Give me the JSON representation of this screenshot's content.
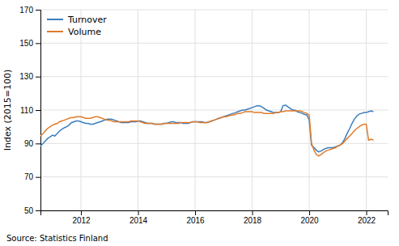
{
  "chart_data": {
    "type": "line",
    "ylabel": "Index (2015=100)",
    "annotations": [
      "Source: Statistics Finland"
    ],
    "xlim": [
      2010.58,
      2022.75
    ],
    "xticks": [
      2012,
      2014,
      2016,
      2018,
      2020,
      2022
    ],
    "ylim": [
      50,
      170
    ],
    "yticks": [
      50,
      70,
      90,
      110,
      130,
      150,
      170
    ],
    "grid": true,
    "legend": "upper left",
    "x": [
      2010.58,
      2010.67,
      2010.75,
      2010.83,
      2010.92,
      2011.0,
      2011.08,
      2011.17,
      2011.25,
      2011.33,
      2011.42,
      2011.5,
      2011.58,
      2011.67,
      2011.75,
      2011.83,
      2011.92,
      2012.0,
      2012.08,
      2012.17,
      2012.25,
      2012.33,
      2012.42,
      2012.5,
      2012.58,
      2012.67,
      2012.75,
      2012.83,
      2012.92,
      2013.0,
      2013.08,
      2013.17,
      2013.25,
      2013.33,
      2013.42,
      2013.5,
      2013.58,
      2013.67,
      2013.75,
      2013.83,
      2013.92,
      2014.0,
      2014.08,
      2014.17,
      2014.25,
      2014.33,
      2014.42,
      2014.5,
      2014.58,
      2014.67,
      2014.75,
      2014.83,
      2014.92,
      2015.0,
      2015.08,
      2015.17,
      2015.25,
      2015.33,
      2015.42,
      2015.5,
      2015.58,
      2015.67,
      2015.75,
      2015.83,
      2015.92,
      2016.0,
      2016.08,
      2016.17,
      2016.25,
      2016.33,
      2016.42,
      2016.5,
      2016.58,
      2016.67,
      2016.75,
      2016.83,
      2016.92,
      2017.0,
      2017.08,
      2017.17,
      2017.25,
      2017.33,
      2017.42,
      2017.5,
      2017.58,
      2017.67,
      2017.75,
      2017.83,
      2017.92,
      2018.0,
      2018.08,
      2018.17,
      2018.25,
      2018.33,
      2018.42,
      2018.5,
      2018.58,
      2018.67,
      2018.75,
      2018.83,
      2018.92,
      2019.0,
      2019.08,
      2019.17,
      2019.25,
      2019.33,
      2019.42,
      2019.5,
      2019.58,
      2019.67,
      2019.75,
      2019.83,
      2019.92,
      2020.0,
      2020.08,
      2020.17,
      2020.25,
      2020.33,
      2020.42,
      2020.5,
      2020.58,
      2020.67,
      2020.75,
      2020.83,
      2020.92,
      2021.0,
      2021.08,
      2021.17,
      2021.25,
      2021.33,
      2021.42,
      2021.5,
      2021.58,
      2021.67,
      2021.75,
      2021.83,
      2021.92,
      2022.0,
      2022.08,
      2022.17,
      2022.25
    ],
    "series": [
      {
        "name": "Turnover",
        "color": "#3a7ebf",
        "values": [
          88.5,
          90.0,
          91.5,
          93.0,
          94.0,
          95.0,
          94.5,
          96.0,
          97.5,
          98.5,
          99.5,
          100.0,
          101.0,
          102.5,
          103.0,
          103.5,
          103.5,
          103.0,
          102.5,
          102.0,
          102.0,
          101.5,
          101.5,
          102.0,
          102.5,
          103.0,
          103.5,
          104.0,
          104.5,
          104.5,
          104.5,
          104.0,
          103.5,
          103.0,
          102.5,
          102.5,
          102.5,
          102.5,
          103.0,
          103.0,
          103.0,
          103.5,
          103.5,
          103.0,
          102.5,
          102.0,
          102.0,
          102.0,
          101.5,
          101.5,
          101.5,
          101.5,
          102.0,
          102.0,
          102.5,
          103.0,
          103.0,
          102.5,
          102.5,
          102.5,
          102.0,
          102.0,
          102.0,
          102.5,
          103.0,
          103.0,
          103.0,
          103.0,
          103.0,
          102.5,
          102.5,
          103.0,
          103.5,
          104.0,
          104.5,
          105.0,
          105.5,
          106.0,
          106.5,
          107.0,
          107.5,
          108.0,
          108.5,
          109.0,
          109.5,
          110.0,
          110.0,
          110.5,
          111.0,
          111.5,
          112.0,
          112.5,
          112.5,
          112.0,
          111.0,
          110.0,
          109.5,
          109.0,
          108.5,
          108.5,
          108.5,
          109.0,
          112.5,
          113.0,
          112.0,
          111.0,
          110.0,
          110.0,
          109.0,
          108.5,
          108.0,
          107.5,
          107.0,
          104.0,
          89.0,
          87.5,
          86.0,
          85.0,
          85.5,
          86.5,
          87.0,
          87.5,
          87.5,
          87.5,
          88.0,
          88.5,
          89.0,
          90.5,
          93.0,
          96.0,
          99.0,
          102.0,
          104.5,
          106.5,
          107.5,
          108.0,
          108.5,
          108.5,
          109.0,
          109.5,
          109.0
        ]
      },
      {
        "name": "Volume",
        "color": "#e07b2a",
        "values": [
          94.5,
          96.0,
          97.5,
          99.0,
          100.0,
          101.0,
          101.5,
          102.0,
          103.0,
          103.5,
          104.0,
          104.5,
          105.0,
          105.5,
          105.5,
          106.0,
          106.0,
          106.0,
          105.5,
          105.0,
          105.0,
          105.0,
          105.5,
          106.0,
          106.0,
          105.5,
          105.0,
          104.5,
          104.0,
          104.0,
          103.5,
          103.0,
          103.0,
          103.0,
          103.0,
          103.0,
          103.0,
          103.0,
          103.5,
          103.5,
          103.5,
          103.5,
          103.0,
          102.5,
          102.0,
          102.0,
          102.0,
          102.0,
          101.5,
          101.5,
          101.5,
          101.5,
          102.0,
          102.0,
          102.0,
          102.0,
          102.0,
          102.0,
          102.0,
          102.5,
          102.5,
          102.5,
          102.5,
          102.5,
          103.0,
          103.0,
          103.0,
          102.5,
          102.5,
          102.5,
          102.5,
          103.0,
          103.5,
          104.0,
          104.5,
          105.0,
          105.5,
          106.0,
          106.0,
          106.5,
          107.0,
          107.0,
          107.5,
          108.0,
          108.0,
          108.5,
          109.0,
          109.0,
          109.0,
          109.0,
          108.5,
          108.5,
          108.5,
          108.5,
          108.0,
          108.0,
          108.0,
          108.0,
          108.0,
          108.5,
          108.5,
          109.0,
          109.0,
          109.5,
          109.5,
          109.5,
          109.5,
          109.5,
          109.5,
          109.5,
          109.0,
          108.5,
          108.0,
          107.0,
          90.0,
          86.0,
          83.5,
          82.5,
          83.5,
          84.5,
          85.5,
          86.0,
          86.5,
          87.0,
          87.5,
          88.5,
          89.0,
          90.0,
          91.5,
          93.0,
          94.5,
          96.0,
          97.5,
          99.0,
          100.0,
          101.0,
          101.5,
          101.5,
          92.0,
          92.5,
          92.0
        ]
      }
    ]
  }
}
